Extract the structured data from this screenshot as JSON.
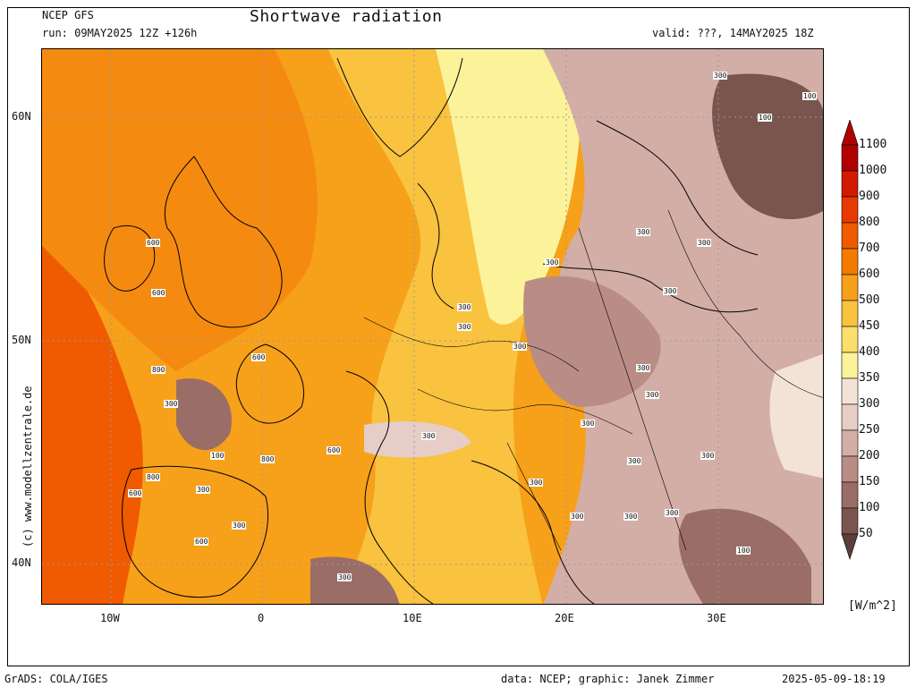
{
  "header": {
    "model": "NCEP GFS",
    "run": "run: 09MAY2025 12Z +126h",
    "title": "Shortwave radiation",
    "valid": "valid: ???, 14MAY2025 18Z"
  },
  "map": {
    "lat_labels": [
      "60N",
      "50N",
      "40N"
    ],
    "lon_labels": [
      "10W",
      "0",
      "10E",
      "20E",
      "30E"
    ],
    "contour_labels": [
      "300",
      "100",
      "100",
      "300",
      "300",
      "300",
      "300",
      "300",
      "300",
      "300",
      "300",
      "300",
      "300",
      "300",
      "300",
      "300",
      "300",
      "300",
      "300",
      "300",
      "300",
      "100",
      "600",
      "600",
      "600",
      "600",
      "800",
      "300",
      "100",
      "800",
      "800",
      "600",
      "600",
      "300",
      "300"
    ],
    "credit": "(c) www.modellzentrale.de"
  },
  "legend": {
    "levels": [
      "1100",
      "1000",
      "900",
      "800",
      "700",
      "600",
      "500",
      "450",
      "400",
      "350",
      "300",
      "250",
      "200",
      "150",
      "100",
      "50"
    ],
    "colors": [
      "#b10000",
      "#d21a00",
      "#e83a00",
      "#f05a00",
      "#f57a00",
      "#f7a01a",
      "#f9c23f",
      "#fbdf6a",
      "#fcf29a",
      "#f3e3d6",
      "#e6cdc6",
      "#d3aea6",
      "#b98d85",
      "#9a6e66",
      "#7a554e",
      "#5c3f3a"
    ],
    "unit": "[W/m^2]"
  },
  "footer": {
    "left": "GrADS: COLA/IGES",
    "center": "data: NCEP; graphic: Janek Zimmer",
    "right": "2025-05-09-18:19"
  }
}
